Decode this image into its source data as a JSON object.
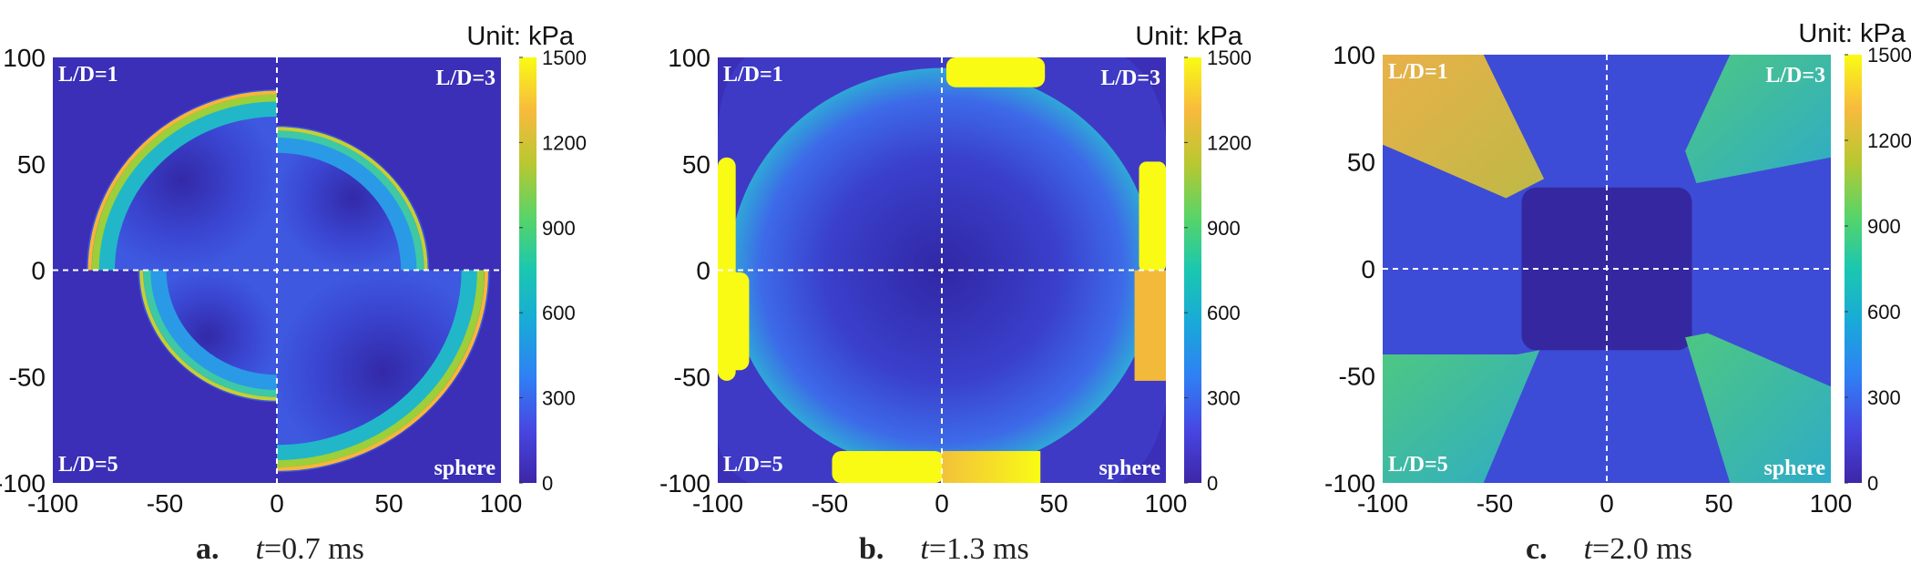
{
  "figure": {
    "panels": [
      {
        "letter": "a.",
        "time_var": "t",
        "time_value": "=0.7 ms",
        "unit_label": "Unit: kPa",
        "quadrant_labels": {
          "top_left": "L/D=1",
          "top_right": "L/D=3",
          "bottom_left": "L/D=5",
          "bottom_right": "sphere"
        },
        "x_ticks": [
          "-100",
          "-50",
          "0",
          "50",
          "100"
        ],
        "y_ticks": [
          "100",
          "50",
          "0",
          "-50",
          "-100"
        ],
        "colorbar_ticks": [
          "1500",
          "1200",
          "900",
          "600",
          "300",
          "0"
        ]
      },
      {
        "letter": "b.",
        "time_var": "t",
        "time_value": "=1.3 ms",
        "unit_label": "Unit: kPa",
        "quadrant_labels": {
          "top_left": "L/D=1",
          "top_right": "L/D=3",
          "bottom_left": "L/D=5",
          "bottom_right": "sphere"
        },
        "x_ticks": [
          "-100",
          "-50",
          "0",
          "50",
          "100"
        ],
        "y_ticks": [
          "100",
          "50",
          "0",
          "-50",
          "-100"
        ],
        "colorbar_ticks": [
          "1500",
          "1200",
          "900",
          "600",
          "300",
          "0"
        ]
      },
      {
        "letter": "c.",
        "time_var": "t",
        "time_value": "=2.0 ms",
        "unit_label": "Unit: kPa",
        "quadrant_labels": {
          "top_left": "L/D=1",
          "top_right": "L/D=3",
          "bottom_left": "L/D=5",
          "bottom_right": "sphere"
        },
        "x_ticks": [
          "-100",
          "-50",
          "0",
          "50",
          "100"
        ],
        "y_ticks": [
          "100",
          "50",
          "0",
          "-50",
          "-100"
        ],
        "colorbar_ticks": [
          "1500",
          "1200",
          "900",
          "600",
          "300",
          "0"
        ]
      }
    ]
  },
  "colors": {
    "colormap": [
      "#3e26a8",
      "#4747e2",
      "#2f80f4",
      "#19a9d9",
      "#1ac7b0",
      "#59d467",
      "#b8c831",
      "#f8ba3d",
      "#f9fb15"
    ],
    "background_field": "#3a2fb6",
    "divider": "#ffffff"
  },
  "chart_data": [
    {
      "type": "heatmap",
      "title": "a. t=0.7 ms",
      "xlim": [
        -100,
        100
      ],
      "ylim": [
        -100,
        100
      ],
      "colorbar": {
        "label": "Unit: kPa",
        "range": [
          0,
          1500
        ],
        "ticks": [
          0,
          300,
          600,
          900,
          1200,
          1500
        ]
      },
      "quadrants": [
        {
          "name": "L/D=1",
          "position": "top-left",
          "shock_front_radius": 85,
          "peak_pressure_kPa": 1300
        },
        {
          "name": "L/D=3",
          "position": "top-right",
          "shock_front_radius": 68,
          "peak_pressure_kPa": 1000
        },
        {
          "name": "L/D=5",
          "position": "bottom-left",
          "shock_front_radius": 62,
          "peak_pressure_kPa": 1000
        },
        {
          "name": "sphere",
          "position": "bottom-right",
          "shock_front_radius": 95,
          "peak_pressure_kPa": 1400
        }
      ]
    },
    {
      "type": "heatmap",
      "title": "b. t=1.3 ms",
      "xlim": [
        -100,
        100
      ],
      "ylim": [
        -100,
        100
      ],
      "colorbar": {
        "label": "Unit: kPa",
        "range": [
          0,
          1500
        ],
        "ticks": [
          0,
          300,
          600,
          900,
          1200,
          1500
        ]
      },
      "quadrants": [
        {
          "name": "L/D=1",
          "position": "top-left",
          "shock_front_radius": 95,
          "peak_pressure_kPa": 1500
        },
        {
          "name": "L/D=3",
          "position": "top-right",
          "shock_front_radius": 95,
          "peak_pressure_kPa": 1500
        },
        {
          "name": "L/D=5",
          "position": "bottom-left",
          "shock_front_radius": 95,
          "peak_pressure_kPa": 1500
        },
        {
          "name": "sphere",
          "position": "bottom-right",
          "shock_front_radius": 100,
          "peak_pressure_kPa": 1500
        }
      ]
    },
    {
      "type": "heatmap",
      "title": "c. t=2.0 ms",
      "xlim": [
        -100,
        100
      ],
      "ylim": [
        -100,
        100
      ],
      "colorbar": {
        "label": "Unit: kPa",
        "range": [
          0,
          1500
        ],
        "ticks": [
          0,
          300,
          600,
          900,
          1200,
          1500
        ]
      },
      "quadrants": [
        {
          "name": "L/D=1",
          "position": "top-left",
          "corner_peak_kPa": 1200
        },
        {
          "name": "L/D=3",
          "position": "top-right",
          "corner_peak_kPa": 800
        },
        {
          "name": "L/D=5",
          "position": "bottom-left",
          "corner_peak_kPa": 800
        },
        {
          "name": "sphere",
          "position": "bottom-right",
          "corner_peak_kPa": 800
        }
      ]
    }
  ]
}
